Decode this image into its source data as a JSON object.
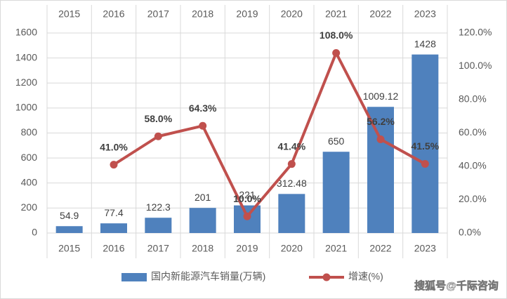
{
  "chart_data": {
    "type": "bar",
    "categories": [
      "2015",
      "2016",
      "2017",
      "2018",
      "2019",
      "2020",
      "2021",
      "2022",
      "2023"
    ],
    "series": [
      {
        "name": "国内新能源汽车销量(万辆)",
        "type": "bar",
        "color": "#4f81bd",
        "values": [
          54.9,
          77.4,
          122.3,
          201,
          221,
          312.48,
          650,
          1009.12,
          1428
        ]
      },
      {
        "name": "增速(%)",
        "type": "line",
        "axis": "y2",
        "color": "#c0504d",
        "values": [
          null,
          41.0,
          58.0,
          64.3,
          10.0,
          41.4,
          108.0,
          56.2,
          41.5
        ],
        "value_labels": [
          null,
          "41.0%",
          "58.0%",
          "64.3%",
          "10.0%",
          "41.4%",
          "108.0%",
          "56.2%",
          "41.5%"
        ]
      }
    ],
    "ylim": [
      0,
      1600
    ],
    "yticks": [
      0,
      200,
      400,
      600,
      800,
      1000,
      1200,
      1400,
      1600
    ],
    "y2lim": [
      0,
      120
    ],
    "y2ticks": [
      {
        "value": 0,
        "label": "0.0%"
      },
      {
        "value": 20,
        "label": "20.0%"
      },
      {
        "value": 40,
        "label": "40.0%"
      },
      {
        "value": 60,
        "label": "60.0%"
      },
      {
        "value": 80,
        "label": "80.0%"
      },
      {
        "value": 100,
        "label": "100.0%"
      },
      {
        "value": 120,
        "label": "120.0%"
      }
    ],
    "grid": true,
    "legend": "bottom",
    "watermark": "搜狐号@千际咨询"
  }
}
